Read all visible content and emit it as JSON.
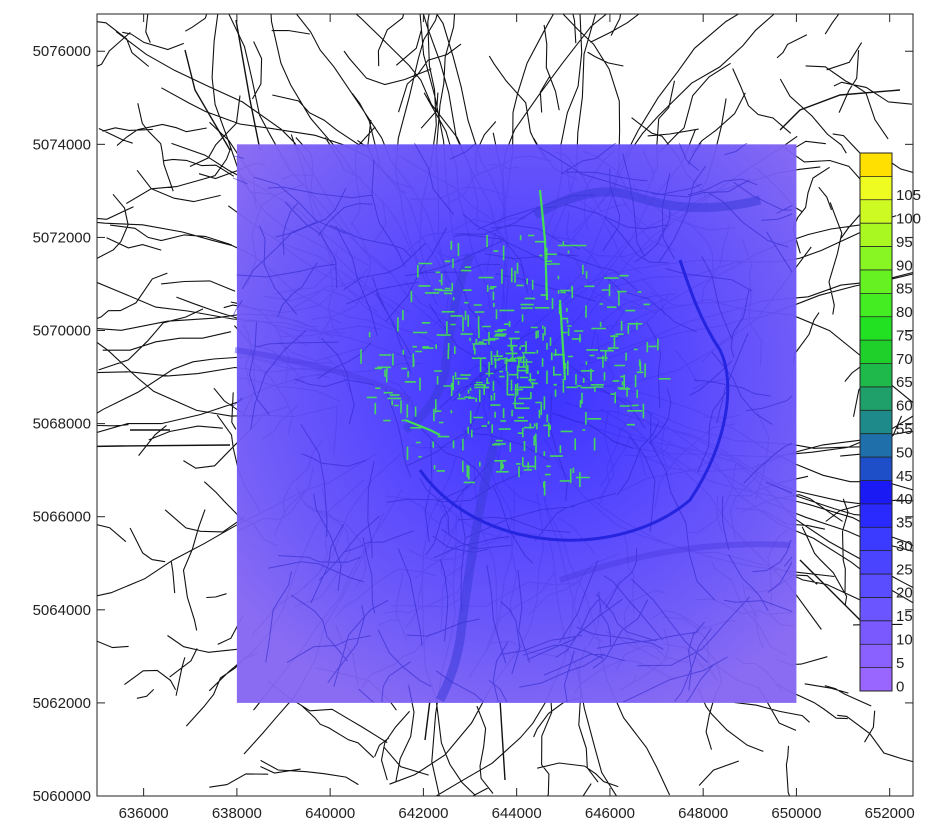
{
  "map": {
    "x_axis": {
      "min": 635000,
      "max": 652500,
      "ticks": [
        636000,
        638000,
        640000,
        642000,
        644000,
        646000,
        648000,
        650000,
        652000
      ],
      "tick_labels": [
        "636000",
        "638000",
        "640000",
        "642000",
        "644000",
        "646000",
        "648000",
        "650000",
        "652000"
      ]
    },
    "y_axis": {
      "min": 5060000,
      "max": 5076800,
      "ticks": [
        5060000,
        5062000,
        5064000,
        5066000,
        5068000,
        5070000,
        5072000,
        5074000,
        5076000
      ],
      "tick_labels": [
        "5060000",
        "5062000",
        "5064000",
        "5066000",
        "5068000",
        "5070000",
        "5072000",
        "5074000",
        "5076000"
      ]
    },
    "grid_extent": {
      "x": [
        638000,
        650000
      ],
      "y": [
        5062000,
        5074000
      ]
    },
    "road_network": "black street network lines",
    "colorbar": {
      "levels": [
        0,
        5,
        10,
        15,
        20,
        25,
        30,
        35,
        40,
        45,
        50,
        55,
        60,
        65,
        70,
        75,
        80,
        85,
        90,
        95,
        100,
        105
      ],
      "labels": [
        "0",
        "5",
        "10",
        "15",
        "20",
        "25",
        "30",
        "35",
        "40",
        "45",
        "50",
        "55",
        "60",
        "65",
        "70",
        "75",
        "80",
        "85",
        "90",
        "95",
        "100",
        "105"
      ],
      "colors": [
        "#9966ff",
        "#8a60ff",
        "#7a5aff",
        "#6a55ff",
        "#5a4dff",
        "#4a44ff",
        "#3b3bff",
        "#2a2aff",
        "#1a1af5",
        "#1f4fc8",
        "#1f6faa",
        "#1f8a8a",
        "#1fa06a",
        "#1fb84a",
        "#1fcf2a",
        "#22e022",
        "#44ec22",
        "#66f222",
        "#88f622",
        "#aaf822",
        "#ccfa22",
        "#eefc22"
      ],
      "top_color": "#ffe000"
    },
    "colors": {
      "background": "#7b66f2",
      "hotspot": "#44ee44",
      "road": "#111111",
      "river": "#3a3ad8"
    }
  }
}
